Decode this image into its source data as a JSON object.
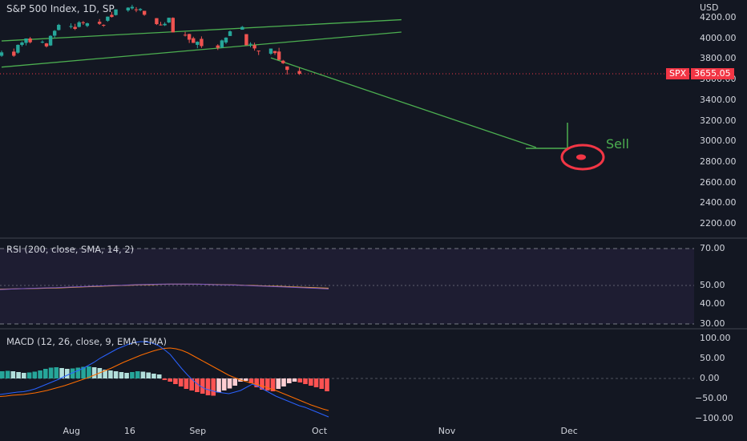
{
  "header": {
    "title": "S&P 500 Index, 1D, SP",
    "currency": "USD"
  },
  "price_axis": {
    "ticks": [
      "4200.00",
      "4000.00",
      "3800.00",
      "3600.00",
      "3400.00",
      "3200.00",
      "3000.00",
      "2800.00",
      "2600.00",
      "2400.00",
      "2200.00"
    ]
  },
  "last_price": {
    "symbol": "SPX",
    "value": "3655.05"
  },
  "annotation": {
    "text": "Sell",
    "color": "#4caf50"
  },
  "rsi": {
    "label": "RSI (200, close, SMA, 14, 2)",
    "ticks": [
      "70.00",
      "50.00",
      "40.00",
      "30.00"
    ]
  },
  "macd": {
    "label": "MACD (12, 26, close, 9, EMA, EMA)",
    "ticks": [
      "100.00",
      "50.00",
      "0.00",
      "−50.00",
      "−100.00"
    ]
  },
  "time_axis": {
    "labels": [
      "Aug",
      "16",
      "Sep",
      "Oct",
      "Nov",
      "Dec"
    ]
  },
  "colors": {
    "up": "#26a69a",
    "down": "#ef5350",
    "background": "#131722",
    "trendline": "#4caf50",
    "marker": "#f23645"
  },
  "chart_data": {
    "type": "candlestick",
    "title": "S&P 500 Index, 1D, SP",
    "last_close": 3655.05,
    "ylim": [
      2100,
      4300
    ],
    "candles": [
      {
        "date": "Jul 15",
        "o": 3830,
        "h": 3880,
        "l": 3820,
        "c": 3863
      },
      {
        "date": "Jul 18",
        "o": 3870,
        "h": 3900,
        "l": 3820,
        "c": 3830
      },
      {
        "date": "Jul 19",
        "o": 3860,
        "h": 3940,
        "l": 3850,
        "c": 3936
      },
      {
        "date": "Jul 20",
        "o": 3935,
        "h": 3970,
        "l": 3920,
        "c": 3959
      },
      {
        "date": "Jul 21",
        "o": 3955,
        "h": 3998,
        "l": 3930,
        "c": 3998
      },
      {
        "date": "Jul 22",
        "o": 3998,
        "h": 4012,
        "l": 3950,
        "c": 3961
      },
      {
        "date": "Jul 25",
        "o": 3965,
        "h": 3980,
        "l": 3950,
        "c": 3966
      },
      {
        "date": "Jul 26",
        "o": 3950,
        "h": 3955,
        "l": 3910,
        "c": 3921
      },
      {
        "date": "Jul 27",
        "o": 3930,
        "h": 4030,
        "l": 3925,
        "c": 4023
      },
      {
        "date": "Jul 28",
        "o": 4025,
        "h": 4080,
        "l": 4000,
        "c": 4072
      },
      {
        "date": "Jul 29",
        "o": 4080,
        "h": 4140,
        "l": 4075,
        "c": 4130
      },
      {
        "date": "Aug 1",
        "o": 4110,
        "h": 4145,
        "l": 4095,
        "c": 4118
      },
      {
        "date": "Aug 2",
        "o": 4110,
        "h": 4140,
        "l": 4080,
        "c": 4091
      },
      {
        "date": "Aug 3",
        "o": 4110,
        "h": 4167,
        "l": 4105,
        "c": 4155
      },
      {
        "date": "Aug 4",
        "o": 4155,
        "h": 4167,
        "l": 4130,
        "c": 4152
      },
      {
        "date": "Aug 5",
        "o": 4120,
        "h": 4152,
        "l": 4107,
        "c": 4145
      },
      {
        "date": "Aug 8",
        "o": 4160,
        "h": 4186,
        "l": 4130,
        "c": 4140
      },
      {
        "date": "Aug 9",
        "o": 4130,
        "h": 4135,
        "l": 4110,
        "c": 4122
      },
      {
        "date": "Aug 10",
        "o": 4170,
        "h": 4211,
        "l": 4160,
        "c": 4210
      },
      {
        "date": "Aug 11",
        "o": 4227,
        "h": 4257,
        "l": 4201,
        "c": 4207
      },
      {
        "date": "Aug 12",
        "o": 4225,
        "h": 4280,
        "l": 4220,
        "c": 4280
      },
      {
        "date": "Aug 15",
        "o": 4270,
        "h": 4301,
        "l": 4256,
        "c": 4297
      },
      {
        "date": "Aug 16",
        "o": 4290,
        "h": 4325,
        "l": 4277,
        "c": 4305
      },
      {
        "date": "Aug 17",
        "o": 4280,
        "h": 4302,
        "l": 4253,
        "c": 4274
      },
      {
        "date": "Aug 18",
        "o": 4273,
        "h": 4293,
        "l": 4262,
        "c": 4284
      },
      {
        "date": "Aug 19",
        "o": 4266,
        "h": 4266,
        "l": 4218,
        "c": 4228
      },
      {
        "date": "Aug 22",
        "o": 4195,
        "h": 4195,
        "l": 4129,
        "c": 4137
      },
      {
        "date": "Aug 23",
        "o": 4133,
        "h": 4159,
        "l": 4124,
        "c": 4128
      },
      {
        "date": "Aug 24",
        "o": 4126,
        "h": 4156,
        "l": 4119,
        "c": 4140
      },
      {
        "date": "Aug 25",
        "o": 4153,
        "h": 4200,
        "l": 4147,
        "c": 4199
      },
      {
        "date": "Aug 26",
        "o": 4198,
        "h": 4203,
        "l": 4057,
        "c": 4057
      },
      {
        "date": "Aug 29",
        "o": 4034,
        "h": 4062,
        "l": 4017,
        "c": 4030
      },
      {
        "date": "Aug 30",
        "o": 4041,
        "h": 4044,
        "l": 3954,
        "c": 3986
      },
      {
        "date": "Aug 31",
        "o": 4000,
        "h": 4015,
        "l": 3954,
        "c": 3955
      },
      {
        "date": "Sep 1",
        "o": 3936,
        "h": 3970,
        "l": 3903,
        "c": 3966
      },
      {
        "date": "Sep 2",
        "o": 3994,
        "h": 4018,
        "l": 3906,
        "c": 3924
      },
      {
        "date": "Sep 6",
        "o": 3930,
        "h": 3942,
        "l": 3886,
        "c": 3908
      },
      {
        "date": "Sep 7",
        "o": 3909,
        "h": 3987,
        "l": 3906,
        "c": 3979
      },
      {
        "date": "Sep 8",
        "o": 3959,
        "h": 4010,
        "l": 3944,
        "c": 4006
      },
      {
        "date": "Sep 9",
        "o": 4022,
        "h": 4076,
        "l": 4022,
        "c": 4067
      },
      {
        "date": "Sep 12",
        "o": 4083,
        "h": 4119,
        "l": 4083,
        "c": 4110
      },
      {
        "date": "Sep 13",
        "o": 4040,
        "h": 4040,
        "l": 3933,
        "c": 3932
      },
      {
        "date": "Sep 14",
        "o": 3940,
        "h": 3961,
        "l": 3912,
        "c": 3946
      },
      {
        "date": "Sep 15",
        "o": 3933,
        "h": 3957,
        "l": 3880,
        "c": 3901
      },
      {
        "date": "Sep 16",
        "o": 3880,
        "h": 3880,
        "l": 3837,
        "c": 3873
      },
      {
        "date": "Sep 19",
        "o": 3850,
        "h": 3900,
        "l": 3838,
        "c": 3900
      },
      {
        "date": "Sep 20",
        "o": 3876,
        "h": 3877,
        "l": 3838,
        "c": 3856
      },
      {
        "date": "Sep 21",
        "o": 3871,
        "h": 3907,
        "l": 3789,
        "c": 3790
      },
      {
        "date": "Sep 22",
        "o": 3782,
        "h": 3790,
        "l": 3750,
        "c": 3758
      },
      {
        "date": "Sep 23",
        "o": 3727,
        "h": 3727,
        "l": 3647,
        "c": 3693
      },
      {
        "date": "Sep 26",
        "o": 3682,
        "h": 3715,
        "l": 3644,
        "c": 3655
      }
    ],
    "trendlines": [
      {
        "from": {
          "date": "Jul 15",
          "price": 3974
        },
        "to": {
          "date": "Oct 21",
          "price": 4180
        }
      },
      {
        "from": {
          "date": "Jul 15",
          "price": 3720
        },
        "to": {
          "date": "Oct 21",
          "price": 4060
        }
      },
      {
        "from": {
          "date": "Sep 19",
          "price": 3810
        },
        "to": {
          "date": "Nov 23",
          "price": 2940
        }
      }
    ],
    "rsi": {
      "params": "RSI (200, close, SMA, 14, 2)",
      "ylim": [
        25,
        75
      ],
      "rsi_values": [
        47.8,
        48.0,
        48.2,
        48.4,
        48.5,
        48.7,
        48.8,
        49.0,
        49.2,
        49.4,
        49.6,
        49.8,
        50.0,
        50.1,
        50.3,
        50.5,
        50.6,
        50.7,
        50.8,
        50.8,
        50.8,
        50.7,
        50.6,
        50.4,
        50.3,
        50.2,
        50.0,
        49.8,
        49.6,
        49.4,
        49.2,
        49.0,
        48.8,
        48.6,
        48.4,
        48.1
      ],
      "sma_values": [
        48.0,
        48.1,
        48.2,
        48.3,
        48.4,
        48.5,
        48.6,
        48.8,
        49.0,
        49.2,
        49.4,
        49.6,
        49.8,
        50.0,
        50.1,
        50.3,
        50.4,
        50.6,
        50.7,
        50.7,
        50.7,
        50.7,
        50.6,
        50.5,
        50.4,
        50.3,
        50.1,
        50.0,
        49.8,
        49.6,
        49.5,
        49.3,
        49.1,
        48.9,
        48.7,
        48.5
      ]
    },
    "macd": {
      "params": "MACD (12, 26, close, 9, EMA, EMA)",
      "ylim": [
        -105,
        105
      ],
      "histogram": [
        18,
        19,
        18,
        16,
        14,
        15,
        17,
        20,
        24,
        27,
        28,
        26,
        24,
        25,
        27,
        29,
        30,
        28,
        26,
        22,
        20,
        18,
        16,
        14,
        16,
        18,
        17,
        15,
        12,
        10,
        -4,
        -8,
        -14,
        -20,
        -26,
        -30,
        -34,
        -38,
        -42,
        -43,
        -35,
        -30,
        -25,
        -18,
        -8,
        -6,
        -12,
        -22,
        -28,
        -30,
        -32,
        -26,
        -20,
        -12,
        -8,
        -10,
        -14,
        -18,
        -22,
        -26,
        -32
      ],
      "macd_line": [
        -40,
        -38,
        -36,
        -34,
        -33,
        -30,
        -26,
        -20,
        -14,
        -8,
        -2,
        5,
        12,
        18,
        24,
        32,
        40,
        50,
        58,
        66,
        74,
        80,
        86,
        90,
        92,
        91,
        88,
        82,
        72,
        60,
        42,
        24,
        8,
        -6,
        -18,
        -26,
        -30,
        -34,
        -36,
        -38,
        -34,
        -30,
        -22,
        -14,
        -20,
        -28,
        -36,
        -44,
        -50,
        -56,
        -62,
        -68,
        -72,
        -78,
        -84,
        -90,
        -96
      ],
      "signal_line": [
        -45,
        -44,
        -42,
        -41,
        -40,
        -38,
        -36,
        -33,
        -30,
        -26,
        -22,
        -18,
        -13,
        -8,
        -3,
        2,
        8,
        14,
        20,
        26,
        33,
        40,
        46,
        52,
        58,
        63,
        68,
        72,
        75,
        76,
        74,
        70,
        64,
        56,
        48,
        40,
        32,
        24,
        16,
        8,
        2,
        -4,
        -8,
        -12,
        -16,
        -20,
        -25,
        -30,
        -36,
        -42,
        -48,
        -54,
        -60,
        -66,
        -71,
        -76,
        -80
      ]
    }
  }
}
